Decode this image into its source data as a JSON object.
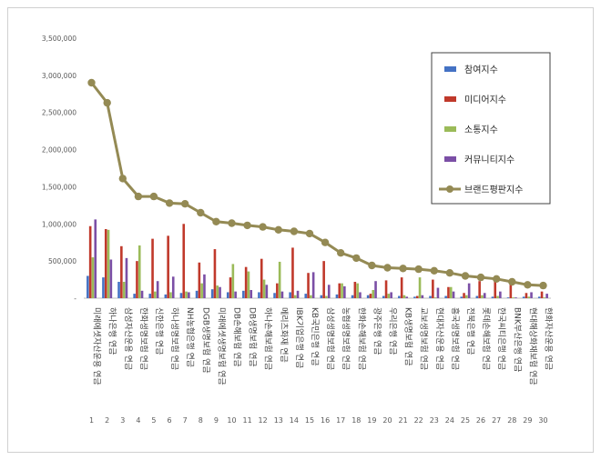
{
  "chart_data": {
    "type": "bar",
    "title": "",
    "xlabel": "",
    "ylabel": "",
    "ylim": [
      0,
      3500000
    ],
    "yticks": [
      0,
      500000,
      1000000,
      1500000,
      2000000,
      2500000,
      3000000,
      3500000
    ],
    "ytick_labels": [
      "-",
      "500,000",
      "1,000,000",
      "1,500,000",
      "2,000,000",
      "2,500,000",
      "3,000,000",
      "3,500,000"
    ],
    "grid": false,
    "legend_position": "top-right",
    "index_labels": [
      "1",
      "2",
      "3",
      "4",
      "5",
      "6",
      "7",
      "8",
      "9",
      "10",
      "11",
      "12",
      "13",
      "14",
      "15",
      "16",
      "17",
      "18",
      "19",
      "20",
      "21",
      "22",
      "23",
      "24",
      "25",
      "26",
      "27",
      "28",
      "29",
      "30"
    ],
    "categories": [
      "미래에셋자산운용 연금",
      "하나은행 연금",
      "삼성자산운용 연금",
      "한화생명보험 연금",
      "신한은행 연금",
      "하나생명보험 연금",
      "NH농협은행 연금",
      "DGB생명보험 연금",
      "미래에셋생명보험 연금",
      "DB손해보험 연금",
      "DB생명보험 연금",
      "하나손해보험 연금",
      "메리츠화재 연금",
      "IBK기업은행 연금",
      "KB국민은행 연금",
      "삼성생명보험 연금",
      "농협생명보험 연금",
      "한화손해보험 연금",
      "광주은행 연금",
      "우리은행 연금",
      "KB생명보험 연금",
      "교보생명보험 연금",
      "현대자산운용 연금",
      "흥국생명보험 연금",
      "전북은행 연금",
      "롯데손해보험 연금",
      "한국씨티은행 연금",
      "BNK부산은행 연금",
      "현대해상화재보험 연금",
      "한화자산운용 연금"
    ],
    "series": [
      {
        "name": "참여지수",
        "type": "bar",
        "color": "#4472c4",
        "values": [
          300000,
          280000,
          220000,
          60000,
          60000,
          50000,
          70000,
          100000,
          120000,
          80000,
          100000,
          80000,
          70000,
          80000,
          60000,
          40000,
          50000,
          40000,
          40000,
          30000,
          30000,
          20000,
          30000,
          30000,
          20000,
          30000,
          20000,
          10000,
          20000,
          20000
        ]
      },
      {
        "name": "미디어지수",
        "type": "bar",
        "color": "#c0392b",
        "values": [
          970000,
          930000,
          700000,
          500000,
          800000,
          840000,
          1000000,
          480000,
          660000,
          280000,
          420000,
          530000,
          200000,
          680000,
          340000,
          500000,
          200000,
          220000,
          60000,
          240000,
          280000,
          30000,
          250000,
          150000,
          70000,
          230000,
          280000,
          190000,
          70000,
          90000
        ]
      },
      {
        "name": "소통지수",
        "type": "bar",
        "color": "#9bbb59",
        "values": [
          550000,
          920000,
          220000,
          710000,
          90000,
          80000,
          90000,
          200000,
          170000,
          460000,
          360000,
          250000,
          490000,
          40000,
          40000,
          30000,
          200000,
          200000,
          110000,
          60000,
          40000,
          280000,
          10000,
          150000,
          40000,
          40000,
          30000,
          10000,
          20000,
          10000
        ]
      },
      {
        "name": "커뮤니티지수",
        "type": "bar",
        "color": "#7b4fa6",
        "values": [
          1060000,
          520000,
          540000,
          100000,
          230000,
          290000,
          80000,
          320000,
          150000,
          90000,
          110000,
          180000,
          90000,
          100000,
          350000,
          180000,
          160000,
          80000,
          230000,
          80000,
          20000,
          40000,
          140000,
          90000,
          200000,
          70000,
          90000,
          10000,
          80000,
          60000
        ]
      },
      {
        "name": "브랜드평판지수",
        "type": "line",
        "color": "#948a54",
        "values": [
          2900000,
          2630000,
          1610000,
          1370000,
          1370000,
          1280000,
          1270000,
          1150000,
          1030000,
          1010000,
          980000,
          960000,
          920000,
          900000,
          870000,
          750000,
          610000,
          540000,
          440000,
          410000,
          400000,
          390000,
          370000,
          340000,
          300000,
          280000,
          260000,
          220000,
          180000,
          170000
        ]
      }
    ]
  }
}
